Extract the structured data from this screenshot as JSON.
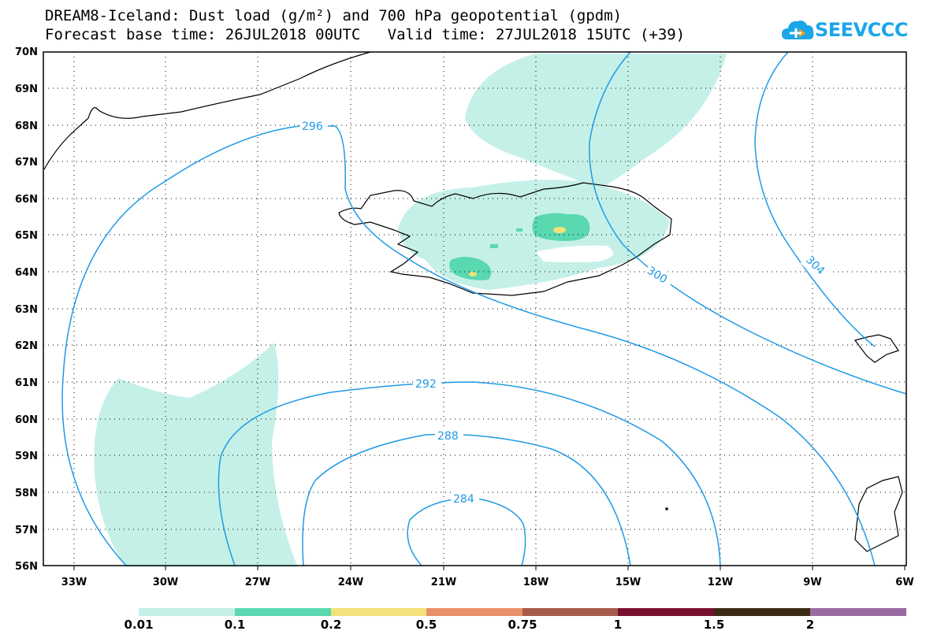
{
  "header": {
    "title_line1": "DREAM8-Iceland: Dust load (g/m²) and 700 hPa geopotential (gpdm)",
    "title_line2": "Forecast base time: 26JUL2018 00UTC   Valid time: 27JUL2018 15UTC (+39)"
  },
  "logo": {
    "text": "SEEVCCC",
    "icon": "cloud-icon",
    "color": "#1aa6e8"
  },
  "map": {
    "lat_labels": [
      "70N",
      "69N",
      "68N",
      "67N",
      "66N",
      "65N",
      "64N",
      "63N",
      "62N",
      "61N",
      "60N",
      "59N",
      "58N",
      "57N",
      "56N"
    ],
    "lon_labels": [
      "33W",
      "30W",
      "27W",
      "24W",
      "21W",
      "18W",
      "15W",
      "12W",
      "9W",
      "6W"
    ],
    "contour_labels": [
      "296",
      "300",
      "304",
      "292",
      "288",
      "284"
    ],
    "contour_color": "#1e9ae6",
    "gridlines": "dotted"
  },
  "colorbar": {
    "labels": [
      "0.01",
      "0.1",
      "0.2",
      "0.5",
      "0.75",
      "1",
      "1.5",
      "2"
    ],
    "colors": [
      "#c5f0e8",
      "#5ad8b0",
      "#f2e27a",
      "#e7906a",
      "#a65a4a",
      "#7a1030",
      "#3b2a14",
      "#9a6aa3"
    ]
  }
}
